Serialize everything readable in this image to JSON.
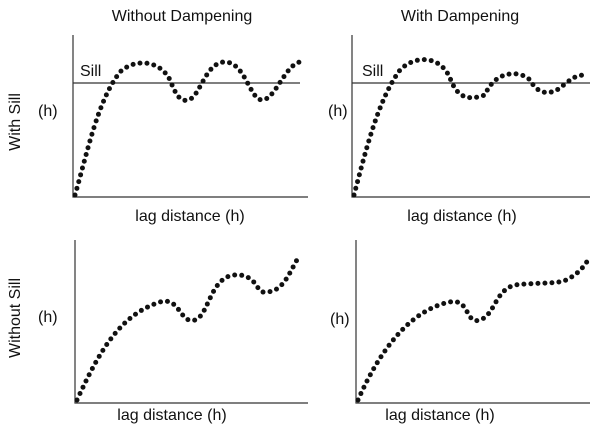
{
  "columns": [
    "Without Dampening",
    "With Dampening"
  ],
  "rows": [
    "With Sill",
    "Without  Sill"
  ],
  "panels": [
    {
      "y_label": "(h)",
      "x_label": "lag distance (h)",
      "sill_label": "Sill"
    },
    {
      "y_label": "(h)",
      "x_label": "lag distance (h)",
      "sill_label": "Sill"
    },
    {
      "y_label": "(h)",
      "x_label": "lag distance (h)"
    },
    {
      "y_label": "(h)",
      "x_label": "lag distance (h)"
    }
  ]
}
